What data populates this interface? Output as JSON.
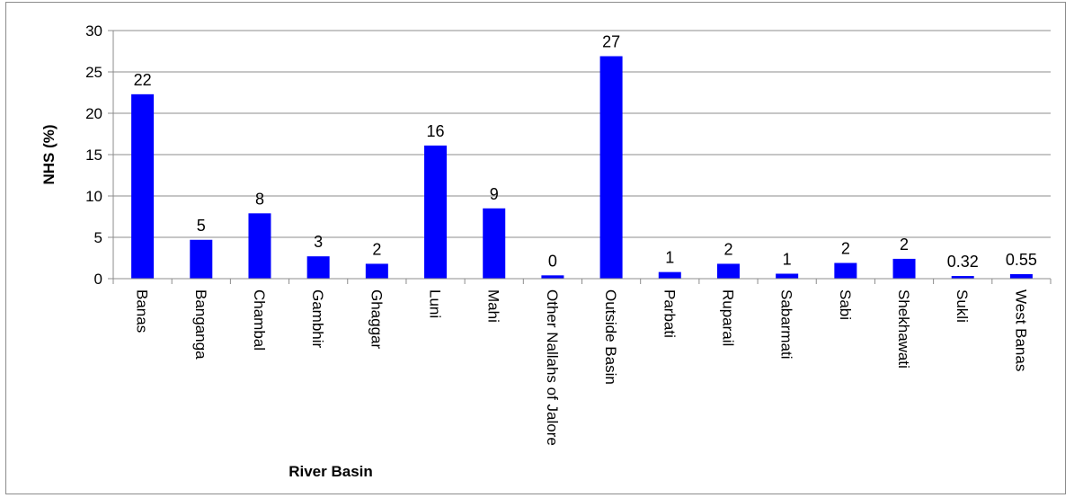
{
  "chart_data": {
    "type": "bar",
    "title": "",
    "xlabel": "River Basin",
    "ylabel": "NHS (%)",
    "ylim": [
      0,
      30
    ],
    "yticks": [
      0,
      5,
      10,
      15,
      20,
      25,
      30
    ],
    "grid": true,
    "legend": "none",
    "bar_color": "#0000ff",
    "categories": [
      "Banas",
      "Banganga",
      "Chambal",
      "Gambhir",
      "Ghaggar",
      "Luni",
      "Mahi",
      "Other Nallahs of Jalore",
      "Outside Basin",
      "Parbati",
      "Ruparail",
      "Sabarmati",
      "Sabi",
      "Shekhawati",
      "Sukli",
      "West Banas"
    ],
    "values": [
      22.3,
      4.7,
      7.9,
      2.7,
      1.8,
      16.1,
      8.5,
      0.4,
      26.9,
      0.8,
      1.8,
      0.6,
      1.9,
      2.4,
      0.32,
      0.55
    ],
    "data_labels": [
      "22",
      "5",
      "8",
      "3",
      "2",
      "16",
      "9",
      "0",
      "27",
      "1",
      "2",
      "1",
      "2",
      "2",
      "0.32",
      "0.55"
    ]
  }
}
